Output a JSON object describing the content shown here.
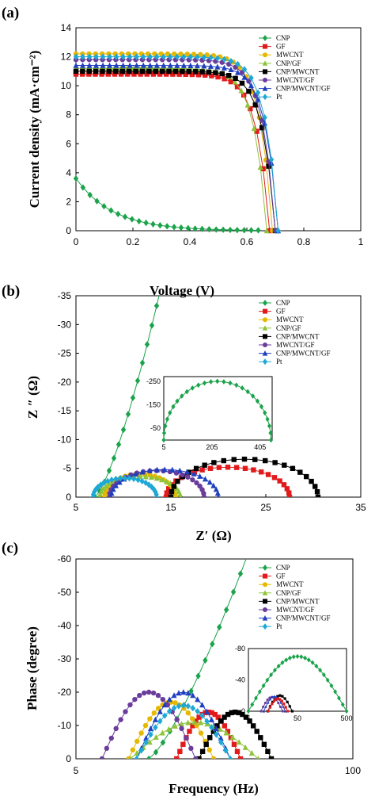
{
  "legend": [
    "CNP",
    "GF",
    "MWCNT",
    "CNP/GF",
    "CNP/MWCNT",
    "MWCNT/GF",
    "CNP/MWCNT/GF",
    "Pt"
  ],
  "colors": {
    "CNP": "#1aa34a",
    "GF": "#e31a1c",
    "MWCNT": "#e6b800",
    "CNP/GF": "#8fc43a",
    "CNP/MWCNT": "#000000",
    "MWCNT/GF": "#6a3d9a",
    "CNP/MWCNT/GF": "#1f3fbf",
    "Pt": "#1fa8d6"
  },
  "chart_data": [
    {
      "panel": "(a)",
      "type": "line",
      "xlabel": "Voltage (V)",
      "ylabel": "Current density (mA·cm⁻²)",
      "xlim": [
        0,
        1
      ],
      "ylim": [
        0,
        14
      ],
      "xticks": [
        "0",
        "0.2",
        "0.4",
        "0.6",
        "0.8",
        "1"
      ],
      "yticks": [
        "0",
        "2",
        "4",
        "6",
        "8",
        "10",
        "12",
        "14"
      ],
      "series": [
        {
          "name": "CNP",
          "kind": "decay",
          "jsc": 3.6,
          "voc": 0.64
        },
        {
          "name": "GF",
          "kind": "jv",
          "jsc": 10.8,
          "voc": 0.68
        },
        {
          "name": "MWCNT",
          "kind": "jv",
          "jsc": 12.2,
          "voc": 0.69
        },
        {
          "name": "CNP/GF",
          "kind": "jv",
          "jsc": 11.2,
          "voc": 0.67
        },
        {
          "name": "CNP/MWCNT",
          "kind": "jv",
          "jsc": 11.0,
          "voc": 0.7
        },
        {
          "name": "MWCNT/GF",
          "kind": "jv",
          "jsc": 11.8,
          "voc": 0.7
        },
        {
          "name": "CNP/MWCNT/GF",
          "kind": "jv",
          "jsc": 11.4,
          "voc": 0.71
        },
        {
          "name": "Pt",
          "kind": "jv",
          "jsc": 12.0,
          "voc": 0.71
        }
      ]
    },
    {
      "panel": "(b)",
      "type": "scatter",
      "xlabel": "Z′ (Ω)",
      "ylabel": "Z ″ (Ω)",
      "xlim": [
        5,
        35
      ],
      "ylim": [
        0,
        -35
      ],
      "xticks": [
        "5",
        "15",
        "25",
        "35"
      ],
      "yticks": [
        "0",
        "-5",
        "-10",
        "-15",
        "-20",
        "-25",
        "-30",
        "-35"
      ],
      "series": [
        {
          "name": "CNP",
          "kind": "arc_rise",
          "x_start": 7.0,
          "x_end": 14.0,
          "height": 35
        },
        {
          "name": "GF",
          "kind": "arc",
          "x_start": 14.5,
          "x_end": 27.5,
          "height": 5.2
        },
        {
          "name": "MWCNT",
          "kind": "arc",
          "x_start": 8.0,
          "x_end": 15.5,
          "height": 4.0
        },
        {
          "name": "CNP/GF",
          "kind": "arc",
          "x_start": 7.5,
          "x_end": 16.0,
          "height": 3.6
        },
        {
          "name": "CNP/MWCNT",
          "kind": "arc",
          "x_start": 15.0,
          "x_end": 30.5,
          "height": 6.6
        },
        {
          "name": "MWCNT/GF",
          "kind": "arc",
          "x_start": 8.5,
          "x_end": 18.5,
          "height": 4.6
        },
        {
          "name": "CNP/MWCNT/GF",
          "kind": "arc",
          "x_start": 8.7,
          "x_end": 20.0,
          "height": 4.8
        },
        {
          "name": "Pt",
          "kind": "arc",
          "x_start": 6.8,
          "x_end": 13.5,
          "height": 3.3
        }
      ],
      "inset": {
        "xlim": [
          5,
          455
        ],
        "ylim": [
          0,
          -270
        ],
        "xticks": [
          "5",
          "205",
          "405"
        ],
        "yticks": [
          "-250",
          "-150",
          "-50"
        ],
        "arc": {
          "x_start": 5,
          "x_end": 450,
          "height": 250
        }
      }
    },
    {
      "panel": "(c)",
      "type": "scatter",
      "xlabel": "Frequency (Hz)",
      "ylabel": "Phase (degree)",
      "xscale": "log",
      "xlim": [
        5,
        100
      ],
      "ylim": [
        0,
        -60
      ],
      "xticks": [
        "5",
        "100"
      ],
      "yticks": [
        "0",
        "-10",
        "-20",
        "-30",
        "-40",
        "-50",
        "-60"
      ],
      "series": [
        {
          "name": "CNP",
          "kind": "phase_rise",
          "f_start": 11,
          "f_end": 32,
          "peak": 60
        },
        {
          "name": "GF",
          "kind": "phase",
          "f_center": 21,
          "spread": 0.15,
          "peak": 14
        },
        {
          "name": "MWCNT",
          "kind": "phase",
          "f_center": 14,
          "spread": 0.2,
          "peak": 17
        },
        {
          "name": "CNP/GF",
          "kind": "phase",
          "f_center": 18,
          "spread": 0.3,
          "peak": 11
        },
        {
          "name": "CNP/MWCNT",
          "kind": "phase",
          "f_center": 28,
          "spread": 0.17,
          "peak": 14
        },
        {
          "name": "MWCNT/GF",
          "kind": "phase",
          "f_center": 11,
          "spread": 0.22,
          "peak": 20
        },
        {
          "name": "CNP/MWCNT/GF",
          "kind": "phase",
          "f_center": 16,
          "spread": 0.22,
          "peak": 20
        },
        {
          "name": "Pt",
          "kind": "phase",
          "f_center": 16,
          "spread": 0.22,
          "peak": 16
        }
      ],
      "inset": {
        "xlim": [
          5,
          500
        ],
        "ylim": [
          0,
          -80
        ],
        "xticks": [
          "5",
          "50",
          "500"
        ],
        "yticks": [
          "-80",
          "-40",
          "0"
        ],
        "arc": {
          "f_start": 5,
          "f_end": 500,
          "peak": 70
        }
      }
    }
  ]
}
